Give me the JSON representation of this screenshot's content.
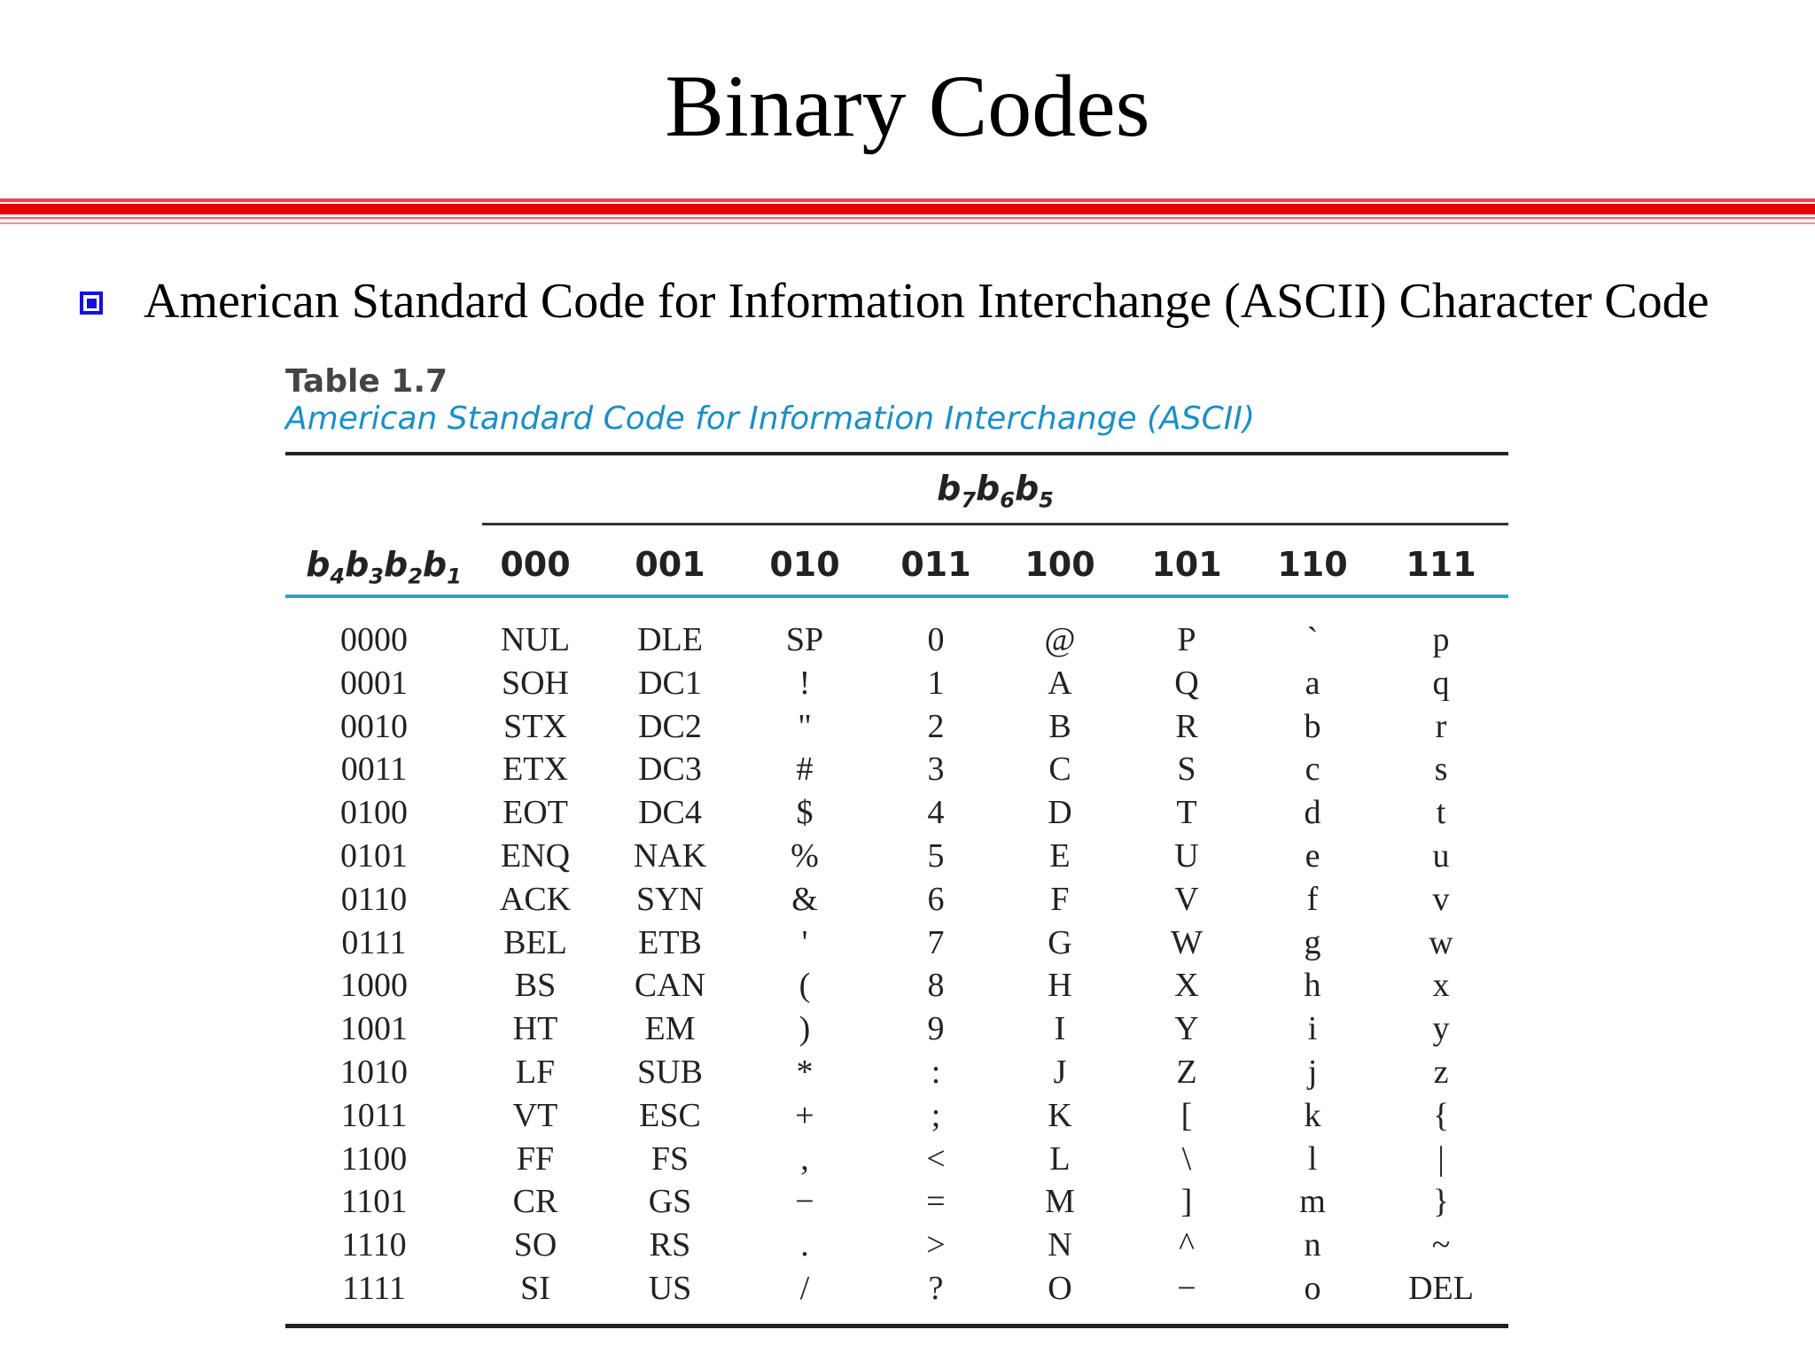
{
  "slide": {
    "title": "Binary Codes",
    "bullet": "American Standard Code for Information Interchange (ASCII) Character Code"
  },
  "table": {
    "number": "Table 1.7",
    "caption": "American Standard Code for Information Interchange (ASCII)",
    "group_header": {
      "base": "b",
      "subs": [
        "7",
        "6",
        "5"
      ]
    },
    "row_header": {
      "base": "b",
      "subs": [
        "4",
        "3",
        "2",
        "1"
      ]
    },
    "columns": [
      "000",
      "001",
      "010",
      "011",
      "100",
      "101",
      "110",
      "111"
    ],
    "rows": [
      {
        "code": "0000",
        "cells": [
          "NUL",
          "DLE",
          "SP",
          "0",
          "@",
          "P",
          "`",
          "p"
        ]
      },
      {
        "code": "0001",
        "cells": [
          "SOH",
          "DC1",
          "!",
          "1",
          "A",
          "Q",
          "a",
          "q"
        ]
      },
      {
        "code": "0010",
        "cells": [
          "STX",
          "DC2",
          "\"",
          "2",
          "B",
          "R",
          "b",
          "r"
        ]
      },
      {
        "code": "0011",
        "cells": [
          "ETX",
          "DC3",
          "#",
          "3",
          "C",
          "S",
          "c",
          "s"
        ]
      },
      {
        "code": "0100",
        "cells": [
          "EOT",
          "DC4",
          "$",
          "4",
          "D",
          "T",
          "d",
          "t"
        ]
      },
      {
        "code": "0101",
        "cells": [
          "ENQ",
          "NAK",
          "%",
          "5",
          "E",
          "U",
          "e",
          "u"
        ]
      },
      {
        "code": "0110",
        "cells": [
          "ACK",
          "SYN",
          "&",
          "6",
          "F",
          "V",
          "f",
          "v"
        ]
      },
      {
        "code": "0111",
        "cells": [
          "BEL",
          "ETB",
          "'",
          "7",
          "G",
          "W",
          "g",
          "w"
        ]
      },
      {
        "code": "1000",
        "cells": [
          "BS",
          "CAN",
          "(",
          "8",
          "H",
          "X",
          "h",
          "x"
        ]
      },
      {
        "code": "1001",
        "cells": [
          "HT",
          "EM",
          ")",
          "9",
          "I",
          "Y",
          "i",
          "y"
        ]
      },
      {
        "code": "1010",
        "cells": [
          "LF",
          "SUB",
          "*",
          ":",
          "J",
          "Z",
          "j",
          "z"
        ]
      },
      {
        "code": "1011",
        "cells": [
          "VT",
          "ESC",
          "+",
          ";",
          "K",
          "[",
          "k",
          "{"
        ]
      },
      {
        "code": "1100",
        "cells": [
          "FF",
          "FS",
          ",",
          "<",
          "L",
          "\\",
          "l",
          "|"
        ]
      },
      {
        "code": "1101",
        "cells": [
          "CR",
          "GS",
          "−",
          "=",
          "M",
          "]",
          "m",
          "}"
        ]
      },
      {
        "code": "1110",
        "cells": [
          "SO",
          "RS",
          ".",
          ">",
          "N",
          "^",
          "n",
          "~"
        ]
      },
      {
        "code": "1111",
        "cells": [
          "SI",
          "US",
          "/",
          "?",
          "O",
          "−",
          "o",
          "DEL"
        ]
      }
    ]
  }
}
